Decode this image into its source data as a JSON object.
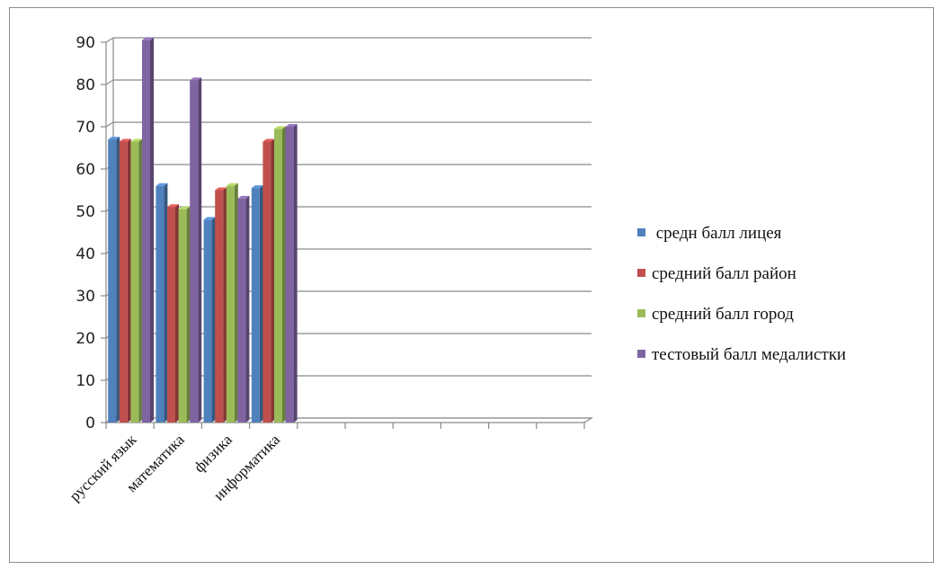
{
  "chart_data": {
    "type": "bar",
    "style": "3d-clustered",
    "categories": [
      "русский язык",
      "математика",
      "физика",
      "информатика",
      "",
      "",
      "",
      "",
      "",
      ""
    ],
    "series": [
      {
        "name": " средн балл лицея",
        "color": "#4f81bd",
        "values": [
          67,
          56,
          48,
          55.5,
          null,
          null,
          null,
          null,
          null,
          null
        ]
      },
      {
        "name": "средний балл район",
        "color": "#c0504d",
        "values": [
          66.5,
          51,
          55,
          66.5,
          null,
          null,
          null,
          null,
          null,
          null
        ]
      },
      {
        "name": "средний балл город",
        "color": "#9bbb59",
        "values": [
          66.5,
          50.5,
          56,
          69.5,
          null,
          null,
          null,
          null,
          null,
          null
        ]
      },
      {
        "name": "тестовый балл медалистки",
        "color": "#8064a2",
        "values": [
          90.5,
          81,
          53,
          70,
          null,
          null,
          null,
          null,
          null,
          null
        ]
      }
    ],
    "yticks": [
      "0",
      "10",
      "20",
      "30",
      "40",
      "50",
      "60",
      "70",
      "80",
      "90"
    ],
    "ylim": [
      0,
      90
    ],
    "grid": true,
    "legend_position": "right"
  }
}
